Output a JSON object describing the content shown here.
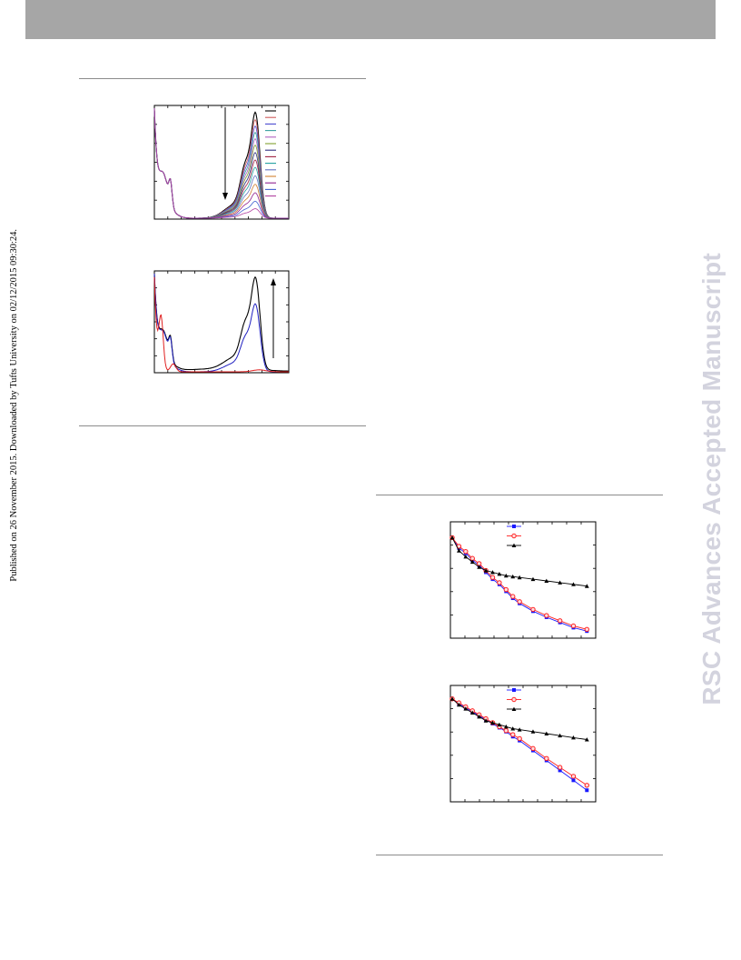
{
  "sidebar": {
    "published_note": "Published on 26 November 2015. Downloaded by Tufts University on 02/12/2015 09:30:24.",
    "watermark": "RSC Advances Accepted Manuscript"
  },
  "colors": {
    "header_bar": "#a6a6a6",
    "rule": "#8c8c8c",
    "watermark": "#d3d3de"
  },
  "chart_data": [
    {
      "type": "line",
      "panel": "top-left",
      "description_visible": "absorption spectra series decreasing, 14 curves with legend swatches",
      "legend_colors": [
        "#000000",
        "#d05a5a",
        "#4a4ad0",
        "#3aa0a0",
        "#b060c0",
        "#80a030",
        "#303080",
        "#a02040",
        "#20a0a0",
        "#6070c0",
        "#d08030",
        "#902090",
        "#4060d0",
        "#b040a0"
      ],
      "series_scales": [
        1.0,
        0.93,
        0.87,
        0.81,
        0.75,
        0.69,
        0.62,
        0.55,
        0.48,
        0.4,
        0.32,
        0.24,
        0.16,
        0.09
      ],
      "arrow": "down"
    },
    {
      "type": "line",
      "panel": "middle-left",
      "arrow": "up",
      "series_colors": [
        "#000000",
        "#2020c0",
        "#e02020"
      ]
    },
    {
      "type": "line",
      "panel": "top-right",
      "x": [
        0,
        1,
        2,
        3,
        4,
        5,
        6,
        7,
        8,
        9,
        10,
        12,
        14,
        16,
        18,
        20
      ],
      "series": [
        {
          "marker": "square",
          "color": "#1a1aff",
          "values": [
            100,
            88,
            82,
            74,
            68,
            60,
            52,
            46,
            38,
            30,
            24,
            15,
            8,
            2,
            -4,
            -8
          ]
        },
        {
          "marker": "circle",
          "color": "#ff2020",
          "values": [
            100,
            90,
            84,
            76,
            70,
            62,
            54,
            48,
            40,
            32,
            26,
            17,
            10,
            4,
            -2,
            -6
          ]
        },
        {
          "marker": "triangle",
          "color": "#000000",
          "values": [
            100,
            85,
            78,
            72,
            66,
            62,
            60,
            58,
            56,
            55,
            54,
            52,
            50,
            48,
            46,
            44
          ]
        }
      ],
      "legend": "top-center"
    },
    {
      "type": "line",
      "panel": "bottom-right",
      "x": [
        0,
        1,
        2,
        3,
        4,
        5,
        6,
        7,
        8,
        9,
        10,
        12,
        14,
        16,
        18,
        20
      ],
      "series": [
        {
          "marker": "square",
          "color": "#1a1aff",
          "values": [
            100,
            95,
            91,
            87,
            83,
            79,
            75,
            71,
            67,
            62,
            58,
            48,
            38,
            28,
            18,
            8
          ]
        },
        {
          "marker": "circle",
          "color": "#ff2020",
          "values": [
            100,
            96,
            92,
            88,
            84,
            80,
            76,
            72,
            68,
            64,
            60,
            50,
            40,
            31,
            22,
            13
          ]
        },
        {
          "marker": "triangle",
          "color": "#000000",
          "values": [
            100,
            94,
            90,
            86,
            82,
            78,
            76,
            74,
            72,
            70,
            69,
            67,
            65,
            63,
            61,
            59
          ]
        }
      ],
      "legend": "top-center"
    }
  ]
}
